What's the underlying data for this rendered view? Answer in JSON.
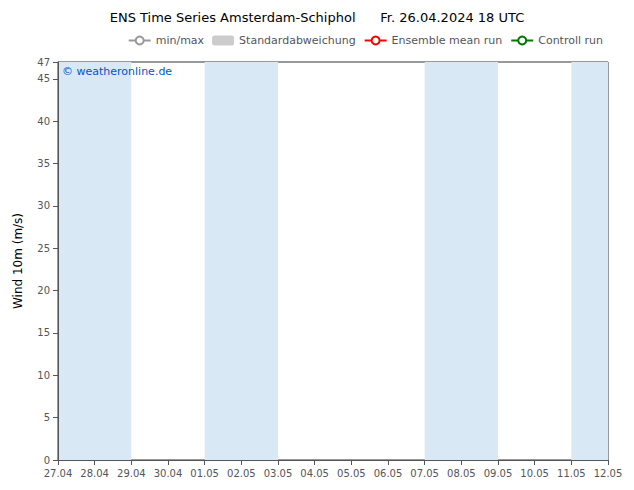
{
  "chart_data": {
    "type": "line",
    "title": "ENS Time Series Amsterdam-Schiphol      Fr. 26.04.2024 18 UTC",
    "y_label": "Wind 10m (m/s)",
    "annotation": "© weatheronline.de",
    "annotation_color": "#0055cc",
    "categories": [
      "27.04",
      "28.04",
      "29.04",
      "30.04",
      "01.05",
      "02.05",
      "03.05",
      "04.05",
      "05.05",
      "06.05",
      "07.05",
      "08.05",
      "09.05",
      "10.05",
      "11.05",
      "12.05"
    ],
    "bands": {
      "color": "#d8e8f5",
      "ranges": [
        [
          0,
          2
        ],
        [
          4,
          6
        ],
        [
          10,
          12
        ],
        [
          14,
          16
        ]
      ]
    },
    "series": [
      {
        "name": "min/max",
        "color": "#999999",
        "type": "line",
        "values": [
          null,
          null,
          null,
          null,
          null,
          null,
          null,
          null,
          null,
          null,
          null,
          null,
          null,
          null,
          null,
          null
        ]
      },
      {
        "name": "Standardabweichung",
        "color": "#cccccc",
        "type": "bar",
        "values": [
          null,
          null,
          null,
          null,
          null,
          null,
          null,
          null,
          null,
          null,
          null,
          null,
          null,
          null,
          null,
          null
        ]
      },
      {
        "name": "Ensemble mean run",
        "color": "#ff0000",
        "type": "line",
        "values": [
          null,
          null,
          null,
          null,
          null,
          null,
          null,
          null,
          null,
          null,
          null,
          null,
          null,
          null,
          null,
          null
        ]
      },
      {
        "name": "Controll run",
        "color": "#007700",
        "type": "line",
        "values": [
          null,
          null,
          null,
          null,
          null,
          null,
          null,
          null,
          null,
          null,
          null,
          null,
          null,
          null,
          null,
          null
        ]
      }
    ],
    "ylim": [
      0,
      47
    ],
    "yticks": [
      0,
      5,
      10,
      15,
      20,
      25,
      30,
      35,
      40,
      45
    ],
    "grid": false,
    "legend": "upper right"
  }
}
